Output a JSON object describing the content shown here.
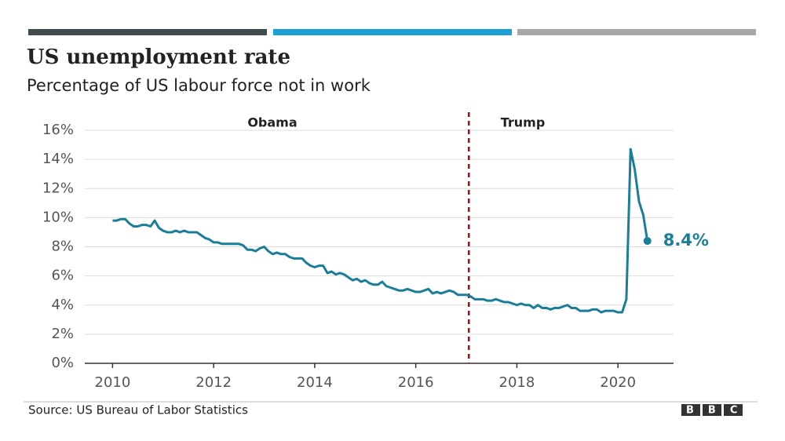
{
  "chart_data": {
    "type": "line",
    "title": "US unemployment rate",
    "subtitle": "Percentage of US labour force not in work",
    "source": "Source: US Bureau of Labor Statistics",
    "logo": "BBC",
    "annotations": {
      "left_label": "Obama",
      "right_label": "Trump",
      "divider_x": 2017.05,
      "divider_color": "#8b1a1a",
      "end_label": "8.4%"
    },
    "xlim": [
      2009.45,
      2021.1
    ],
    "xticks": [
      2010,
      2012,
      2014,
      2016,
      2018,
      2020
    ],
    "ylim": [
      0,
      16
    ],
    "yticks": [
      {
        "value": 0,
        "label": "0%"
      },
      {
        "value": 2,
        "label": "2%"
      },
      {
        "value": 4,
        "label": "4%"
      },
      {
        "value": 6,
        "label": "6%"
      },
      {
        "value": 8,
        "label": "8%"
      },
      {
        "value": 10,
        "label": "10%"
      },
      {
        "value": 12,
        "label": "12%"
      },
      {
        "value": 14,
        "label": "14%"
      },
      {
        "value": 16,
        "label": "16%"
      }
    ],
    "grid": true,
    "series": [
      {
        "name": "Unemployment rate",
        "color": "#1b7e99",
        "x": [
          2010,
          2010.083,
          2010.167,
          2010.25,
          2010.333,
          2010.417,
          2010.5,
          2010.583,
          2010.667,
          2010.75,
          2010.833,
          2010.917,
          2011,
          2011.083,
          2011.167,
          2011.25,
          2011.333,
          2011.417,
          2011.5,
          2011.583,
          2011.667,
          2011.75,
          2011.833,
          2011.917,
          2012,
          2012.083,
          2012.167,
          2012.25,
          2012.333,
          2012.417,
          2012.5,
          2012.583,
          2012.667,
          2012.75,
          2012.833,
          2012.917,
          2013,
          2013.083,
          2013.167,
          2013.25,
          2013.333,
          2013.417,
          2013.5,
          2013.583,
          2013.667,
          2013.75,
          2013.833,
          2013.917,
          2014,
          2014.083,
          2014.167,
          2014.25,
          2014.333,
          2014.417,
          2014.5,
          2014.583,
          2014.667,
          2014.75,
          2014.833,
          2014.917,
          2015,
          2015.083,
          2015.167,
          2015.25,
          2015.333,
          2015.417,
          2015.5,
          2015.583,
          2015.667,
          2015.75,
          2015.833,
          2015.917,
          2016,
          2016.083,
          2016.167,
          2016.25,
          2016.333,
          2016.417,
          2016.5,
          2016.583,
          2016.667,
          2016.75,
          2016.833,
          2016.917,
          2017,
          2017.083,
          2017.167,
          2017.25,
          2017.333,
          2017.417,
          2017.5,
          2017.583,
          2017.667,
          2017.75,
          2017.833,
          2017.917,
          2018,
          2018.083,
          2018.167,
          2018.25,
          2018.333,
          2018.417,
          2018.5,
          2018.583,
          2018.667,
          2018.75,
          2018.833,
          2018.917,
          2019,
          2019.083,
          2019.167,
          2019.25,
          2019.333,
          2019.417,
          2019.5,
          2019.583,
          2019.667,
          2019.75,
          2019.833,
          2019.917,
          2020,
          2020.083,
          2020.167,
          2020.25,
          2020.333,
          2020.417,
          2020.5,
          2020.583
        ],
        "values": [
          9.8,
          9.8,
          9.9,
          9.9,
          9.6,
          9.4,
          9.4,
          9.5,
          9.5,
          9.4,
          9.8,
          9.3,
          9.1,
          9.0,
          9.0,
          9.1,
          9.0,
          9.1,
          9.0,
          9.0,
          9.0,
          8.8,
          8.6,
          8.5,
          8.3,
          8.3,
          8.2,
          8.2,
          8.2,
          8.2,
          8.2,
          8.1,
          7.8,
          7.8,
          7.7,
          7.9,
          8.0,
          7.7,
          7.5,
          7.6,
          7.5,
          7.5,
          7.3,
          7.2,
          7.2,
          7.2,
          6.9,
          6.7,
          6.6,
          6.7,
          6.7,
          6.2,
          6.3,
          6.1,
          6.2,
          6.1,
          5.9,
          5.7,
          5.8,
          5.6,
          5.7,
          5.5,
          5.4,
          5.4,
          5.6,
          5.3,
          5.2,
          5.1,
          5.0,
          5.0,
          5.1,
          5.0,
          4.9,
          4.9,
          5.0,
          5.1,
          4.8,
          4.9,
          4.8,
          4.9,
          5.0,
          4.9,
          4.7,
          4.7,
          4.7,
          4.6,
          4.4,
          4.4,
          4.4,
          4.3,
          4.3,
          4.4,
          4.3,
          4.2,
          4.2,
          4.1,
          4.0,
          4.1,
          4.0,
          4.0,
          3.8,
          4.0,
          3.8,
          3.8,
          3.7,
          3.8,
          3.8,
          3.9,
          4.0,
          3.8,
          3.8,
          3.6,
          3.6,
          3.6,
          3.7,
          3.7,
          3.5,
          3.6,
          3.6,
          3.6,
          3.5,
          3.5,
          4.4,
          14.7,
          13.3,
          11.1,
          10.2,
          8.4
        ]
      }
    ]
  }
}
